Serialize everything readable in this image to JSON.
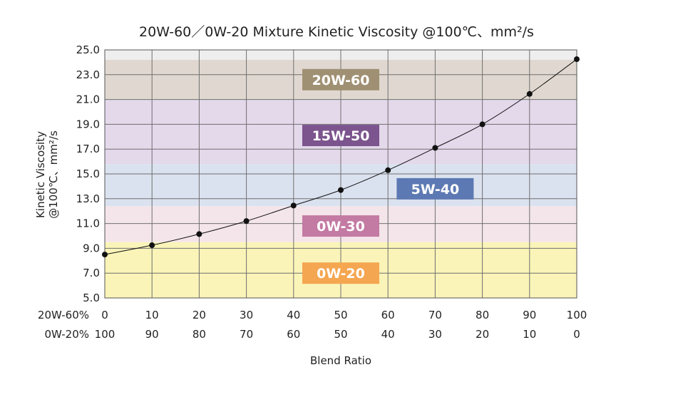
{
  "chart_data": {
    "type": "line",
    "title": "20W-60／0W-20 Mixture Kinetic Viscosity @100℃、mm²/s",
    "xlabel": "Blend Ratio",
    "ylabel_lines": [
      "Kinetic Viscosity",
      "@100℃、mm²/s"
    ],
    "x_rows": [
      {
        "name": "20W-60%",
        "values": [
          "0",
          "10",
          "20",
          "30",
          "40",
          "50",
          "60",
          "70",
          "80",
          "90",
          "100"
        ]
      },
      {
        "name": "0W-20%",
        "values": [
          "100",
          "90",
          "80",
          "70",
          "60",
          "50",
          "40",
          "30",
          "20",
          "10",
          "0"
        ]
      }
    ],
    "x": [
      0,
      10,
      20,
      30,
      40,
      50,
      60,
      70,
      80,
      90,
      100
    ],
    "y": [
      8.5,
      9.25,
      10.15,
      11.2,
      12.45,
      13.7,
      15.3,
      17.1,
      19.0,
      21.45,
      24.25
    ],
    "xlim": [
      0,
      100
    ],
    "ylim": [
      5,
      25
    ],
    "yticks": [
      "5.0",
      "7.0",
      "9.0",
      "11.0",
      "13.0",
      "15.0",
      "17.0",
      "19.0",
      "21.0",
      "23.0",
      "25.0"
    ],
    "grid": true,
    "bands": [
      {
        "label": "0W-20",
        "y0": 5.0,
        "y1": 9.5,
        "fill": "#faf4b8",
        "badge": "#f5a650",
        "label_x": 50,
        "label_y": 7.0
      },
      {
        "label": "0W-30",
        "y0": 9.5,
        "y1": 12.4,
        "fill": "#f4e5ea",
        "badge": "#c37aa3",
        "label_x": 50,
        "label_y": 10.8
      },
      {
        "label": "5W-40",
        "y0": 12.4,
        "y1": 15.8,
        "fill": "#dbe2ef",
        "badge": "#5d79b3",
        "label_x": 70,
        "label_y": 13.8
      },
      {
        "label": "15W-50",
        "y0": 15.8,
        "y1": 21.0,
        "fill": "#e4d8eb",
        "badge": "#7c548e",
        "label_x": 50,
        "label_y": 18.1
      },
      {
        "label": "20W-60",
        "y0": 21.0,
        "y1": 24.2,
        "fill": "#e0d8d0",
        "badge": "#a09073",
        "label_x": 50,
        "label_y": 22.6
      },
      {
        "label": "",
        "y0": 24.2,
        "y1": 25.0,
        "fill": "#eeeeee",
        "badge": "",
        "label_x": 0,
        "label_y": 0
      }
    ],
    "line_color": "#111111"
  }
}
